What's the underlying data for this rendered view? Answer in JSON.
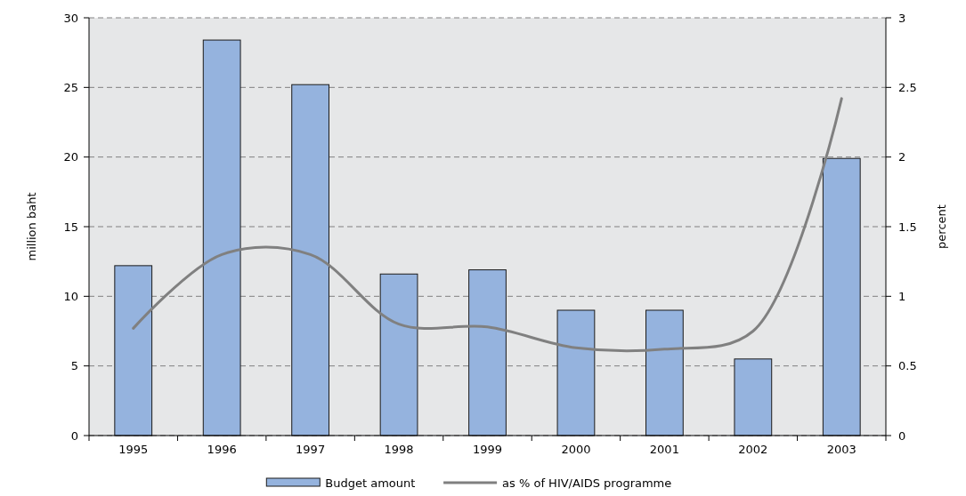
{
  "chart_data": {
    "type": "bar",
    "ylabel": "million baht",
    "y2label": "percent",
    "categories": [
      "1995",
      "1996",
      "1997",
      "1998",
      "1999",
      "2000",
      "2001",
      "2002",
      "2003"
    ],
    "series": [
      {
        "name": "Budget amount",
        "color": "#95b3de",
        "values": [
          12.2,
          28.4,
          25.2,
          11.6,
          11.9,
          9.0,
          9.0,
          5.5,
          19.9
        ]
      },
      {
        "name": "as % of HIV/AIDS programme",
        "type": "line",
        "axis": "y2",
        "color": "#808080",
        "values": [
          0.77,
          1.3,
          1.3,
          0.8,
          0.78,
          0.63,
          0.62,
          0.75,
          2.42
        ]
      }
    ],
    "ylim": [
      0,
      30
    ],
    "yticks": [
      0,
      5,
      10,
      15,
      20,
      25,
      30
    ],
    "y2lim": [
      0,
      3
    ],
    "y2ticks": [
      0,
      0.5,
      1,
      1.5,
      2,
      2.5,
      3
    ],
    "grid": "y",
    "legend": "bottom",
    "marker": "none",
    "line_style": "solid"
  }
}
